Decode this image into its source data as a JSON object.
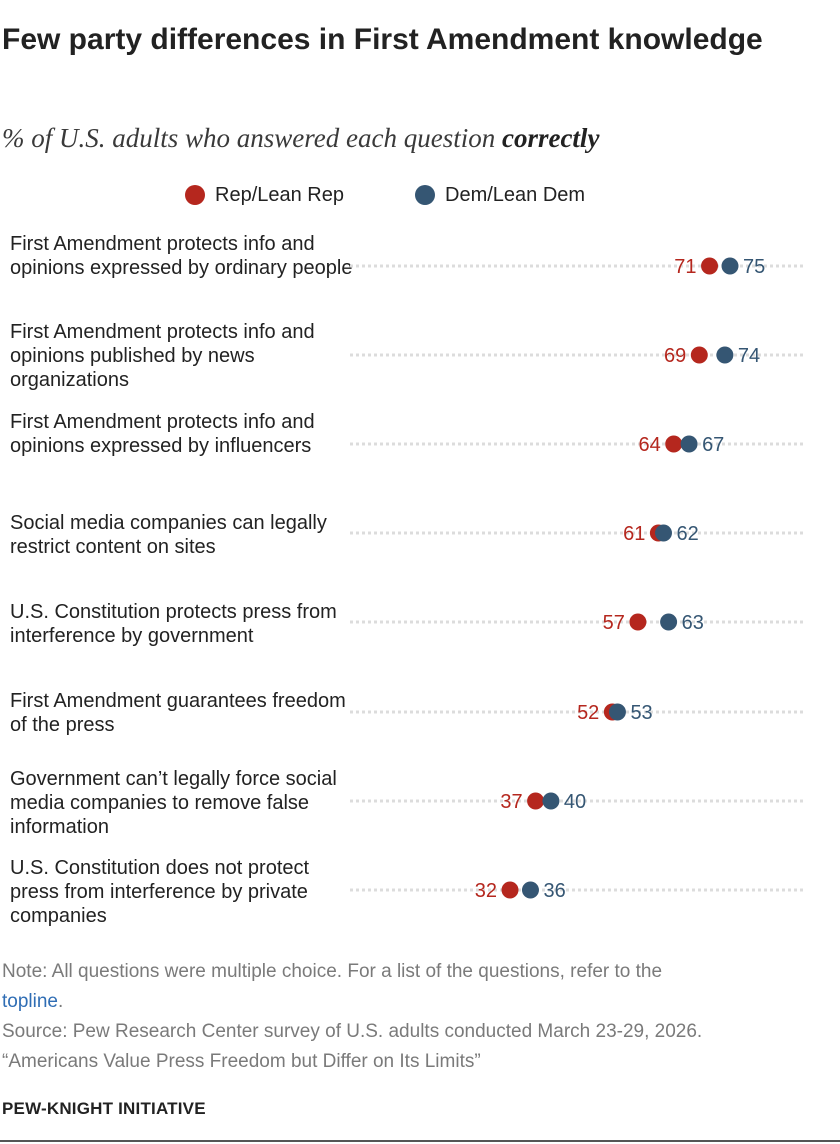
{
  "header": {
    "title": "Few party differences in First Amendment knowledge",
    "subtitle_prefix": "% of U.S. adults who answered each question ",
    "subtitle_emphasis": "correctly"
  },
  "colors": {
    "rep": "#b5271e",
    "dem": "#355673",
    "dotted_line": "#dcdcdc",
    "text": "#222222",
    "note": "#7a7a7a",
    "link": "#2f6db4"
  },
  "chart_data": {
    "type": "dot",
    "xlim": [
      0,
      100
    ],
    "grid": false,
    "legend_position": "top",
    "series": [
      {
        "name": "Rep/Lean Rep",
        "values": [
          71,
          69,
          64,
          61,
          57,
          52,
          37,
          32
        ]
      },
      {
        "name": "Dem/Lean Dem",
        "values": [
          75,
          74,
          67,
          62,
          63,
          53,
          40,
          36
        ]
      }
    ],
    "categories": [
      "First Amendment protects info and opinions expressed by ordinary people",
      "First Amendment protects info and opinions published by news organizations",
      "First Amendment protects info and opinions expressed by influencers",
      "Social media companies can legally restrict content on sites",
      "U.S. Constitution protects press from interference by government",
      "First Amendment guarantees freedom of the press",
      "Government can’t legally force social media companies to remove false information",
      "U.S. Constitution does not protect press from interference by private companies"
    ]
  },
  "footer": {
    "note_prefix": "Note: All questions were multiple choice. For a list of the questions, refer to the",
    "note_link": "topline",
    "note_suffix": ".",
    "source": "Source: Pew Research Center survey of U.S. adults conducted March 23-29, 2026.",
    "report": "“Americans Value Press Freedom but Differ on Its Limits”",
    "brand": "PEW-KNIGHT INITIATIVE"
  }
}
